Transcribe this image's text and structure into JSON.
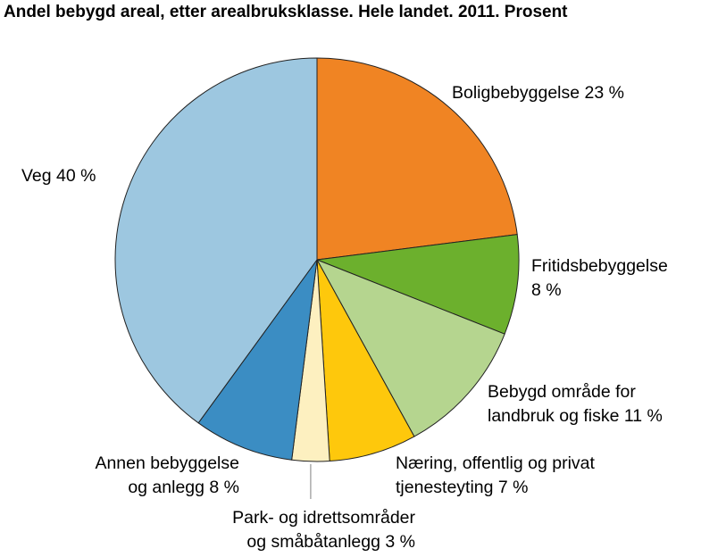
{
  "chart_data": {
    "type": "pie",
    "title": "Andel bebygd areal, etter arealbruksklasse. Hele landet. 2011. Prosent",
    "slices": [
      {
        "label": [
          "Boligbebyggelse 23 %"
        ],
        "value": 23,
        "color": "#f08423"
      },
      {
        "label": [
          "Fritidsbebyggelse",
          "8 %"
        ],
        "value": 8,
        "color": "#6cb02d"
      },
      {
        "label": [
          "Bebygd område for",
          "landbruk og fiske 11 %"
        ],
        "value": 11,
        "color": "#b5d58f"
      },
      {
        "label": [
          "Næring, offentlig og privat",
          "tjenesteyting 7 %"
        ],
        "value": 7,
        "color": "#fec80c"
      },
      {
        "label": [
          "Park- og idrettsområder",
          "og småbåtanlegg 3 %"
        ],
        "value": 3,
        "color": "#fdf0c0"
      },
      {
        "label": [
          "Annen bebyggelse",
          "og anlegg 8 %"
        ],
        "value": 8,
        "color": "#3b8dc3"
      },
      {
        "label": [
          "Veg 40 %"
        ],
        "value": 40,
        "color": "#9dc7e0"
      }
    ]
  }
}
